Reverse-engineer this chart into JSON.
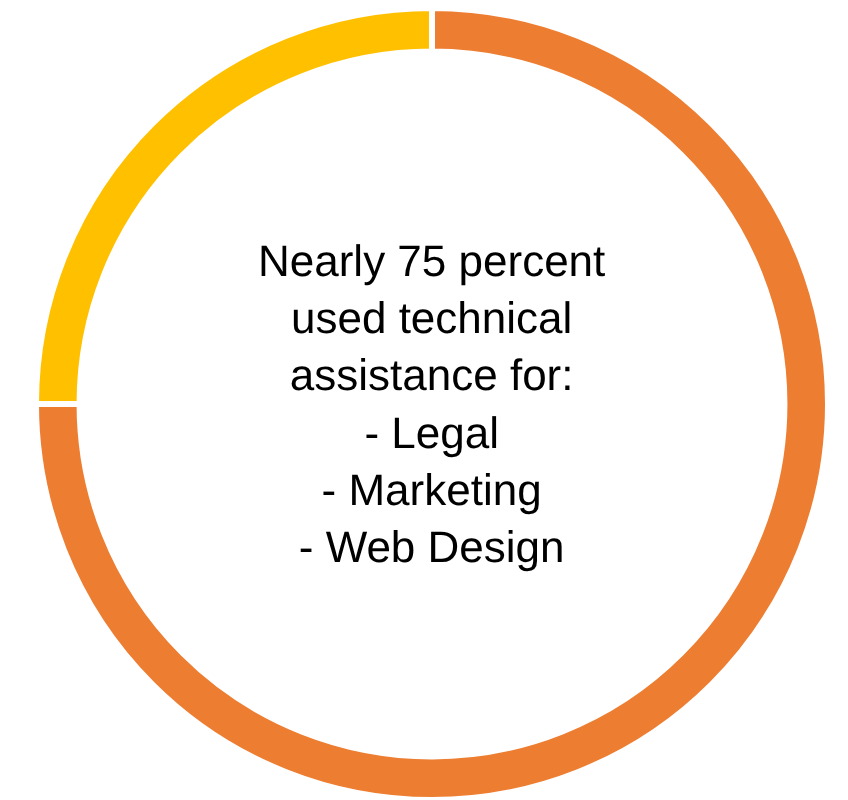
{
  "chart_data": {
    "type": "donut",
    "categories": [
      null,
      null
    ],
    "values": [
      75,
      25
    ],
    "colors": [
      "#ed7d31",
      "#ffc000"
    ],
    "legend": false,
    "annotations": [
      "Nearly 75 percent\nused technical\nassistance for:\n- Legal\n- Marketing\n- Web Design"
    ]
  }
}
